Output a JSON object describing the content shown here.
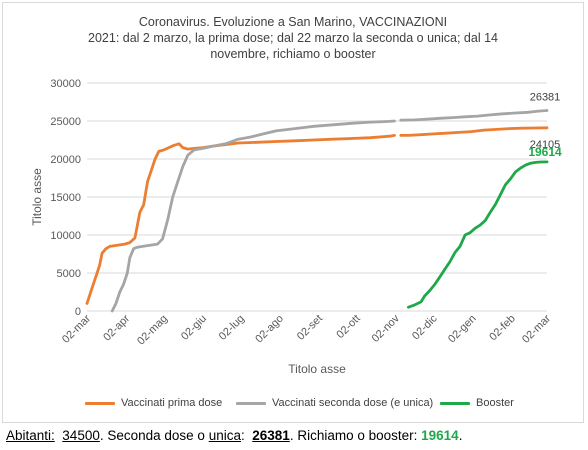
{
  "chart_data": {
    "type": "line",
    "title_lines": [
      "Coronavirus. Evoluzione a San Marino, VACCINAZIONI",
      "2021: dal 2 marzo, la prima dose; dal  22 marzo la seconda o unica; dal 14",
      "novembre, richiamo o booster"
    ],
    "xlabel": "Titolo asse",
    "ylabel": "Titolo asse",
    "ylim": [
      0,
      30000
    ],
    "yticks": [
      "0",
      "5000",
      "10000",
      "15000",
      "20000",
      "25000",
      "30000"
    ],
    "xticks": [
      "02-mar",
      "02-apr",
      "02-mag",
      "02-giu",
      "02-lug",
      "02-ago",
      "02-set",
      "02-ott",
      "02-nov",
      "02-dic",
      "02-gen",
      "02-feb",
      "02-mar"
    ],
    "grid": true,
    "legend_position": "bottom",
    "series": [
      {
        "name": "Vaccinati prima dose",
        "color": "#ed7d31",
        "segments": [
          [
            [
              0,
              1000
            ],
            [
              4,
              3000
            ],
            [
              8,
              5000
            ],
            [
              10,
              6000
            ],
            [
              12,
              7600
            ],
            [
              15,
              8200
            ],
            [
              18,
              8500
            ],
            [
              22,
              8600
            ],
            [
              26,
              8700
            ],
            [
              30,
              8800
            ],
            [
              34,
              9000
            ],
            [
              38,
              9600
            ],
            [
              42,
              13000
            ],
            [
              45,
              14000
            ],
            [
              48,
              17000
            ],
            [
              51,
              18500
            ],
            [
              54,
              20000
            ],
            [
              57,
              21000
            ],
            [
              61,
              21200
            ],
            [
              65,
              21500
            ],
            [
              69,
              21800
            ],
            [
              73,
              22000
            ],
            [
              76,
              21500
            ],
            [
              80,
              21300
            ],
            [
              85,
              21400
            ],
            [
              92,
              21500
            ],
            [
              100,
              21700
            ],
            [
              110,
              21900
            ],
            [
              120,
              22100
            ],
            [
              135,
              22200
            ],
            [
              150,
              22300
            ],
            [
              165,
              22400
            ],
            [
              180,
              22500
            ],
            [
              195,
              22600
            ],
            [
              210,
              22700
            ],
            [
              225,
              22800
            ],
            [
              240,
              23000
            ],
            [
              244,
              23100
            ]
          ],
          [
            [
              249,
              23100
            ],
            [
              255,
              23100
            ],
            [
              265,
              23200
            ],
            [
              275,
              23300
            ],
            [
              285,
              23400
            ],
            [
              295,
              23500
            ],
            [
              305,
              23600
            ],
            [
              315,
              23800
            ],
            [
              325,
              23900
            ],
            [
              335,
              24000
            ],
            [
              345,
              24050
            ],
            [
              355,
              24080
            ],
            [
              365,
              24105
            ]
          ]
        ],
        "end_label": "24105"
      },
      {
        "name": "Vaccinati seconda dose (e unica)",
        "color": "#a5a5a5",
        "segments": [
          [
            [
              20,
              0
            ],
            [
              23,
              1000
            ],
            [
              26,
              2500
            ],
            [
              29,
              3500
            ],
            [
              32,
              5000
            ],
            [
              34,
              7000
            ],
            [
              37,
              8200
            ],
            [
              40,
              8400
            ],
            [
              44,
              8500
            ],
            [
              48,
              8600
            ],
            [
              52,
              8700
            ],
            [
              56,
              8800
            ],
            [
              60,
              9500
            ],
            [
              64,
              12000
            ],
            [
              68,
              15000
            ],
            [
              72,
              17000
            ],
            [
              76,
              19000
            ],
            [
              80,
              20500
            ],
            [
              85,
              21200
            ],
            [
              92,
              21400
            ],
            [
              100,
              21700
            ],
            [
              110,
              22000
            ],
            [
              120,
              22600
            ],
            [
              130,
              22900
            ],
            [
              140,
              23300
            ],
            [
              150,
              23700
            ],
            [
              165,
              24000
            ],
            [
              180,
              24300
            ],
            [
              195,
              24500
            ],
            [
              210,
              24700
            ],
            [
              225,
              24850
            ],
            [
              240,
              24950
            ],
            [
              244,
              25000
            ]
          ],
          [
            [
              249,
              25100
            ],
            [
              260,
              25150
            ],
            [
              270,
              25250
            ],
            [
              280,
              25350
            ],
            [
              290,
              25450
            ],
            [
              300,
              25550
            ],
            [
              310,
              25650
            ],
            [
              320,
              25800
            ],
            [
              330,
              25950
            ],
            [
              340,
              26050
            ],
            [
              350,
              26150
            ],
            [
              358,
              26300
            ],
            [
              365,
              26381
            ]
          ]
        ],
        "end_label": "26381"
      },
      {
        "name": "Booster",
        "color": "#1fa84a",
        "segments": [
          [
            [
              255,
              500
            ],
            [
              260,
              800
            ],
            [
              265,
              1200
            ],
            [
              268,
              2000
            ],
            [
              272,
              2700
            ],
            [
              276,
              3500
            ],
            [
              280,
              4500
            ],
            [
              284,
              5500
            ],
            [
              288,
              6500
            ],
            [
              292,
              7700
            ],
            [
              296,
              8500
            ],
            [
              300,
              10000
            ],
            [
              304,
              10300
            ],
            [
              308,
              10900
            ],
            [
              312,
              11300
            ],
            [
              316,
              11900
            ],
            [
              320,
              13000
            ],
            [
              324,
              14000
            ],
            [
              328,
              15300
            ],
            [
              332,
              16600
            ],
            [
              336,
              17400
            ],
            [
              340,
              18300
            ],
            [
              344,
              18800
            ],
            [
              348,
              19200
            ],
            [
              352,
              19450
            ],
            [
              356,
              19550
            ],
            [
              360,
              19600
            ],
            [
              365,
              19614
            ]
          ]
        ],
        "end_label": "19614"
      }
    ]
  },
  "footer": {
    "label_abitanti": "Abitanti:",
    "abitanti": "34500",
    "label_seconda": ". Seconda dose o",
    "unica": "unica",
    "colon": ":",
    "seconda_value": "26381",
    "label_booster": ".  Richiamo o booster:",
    "booster_value": "19614",
    "period": "."
  }
}
